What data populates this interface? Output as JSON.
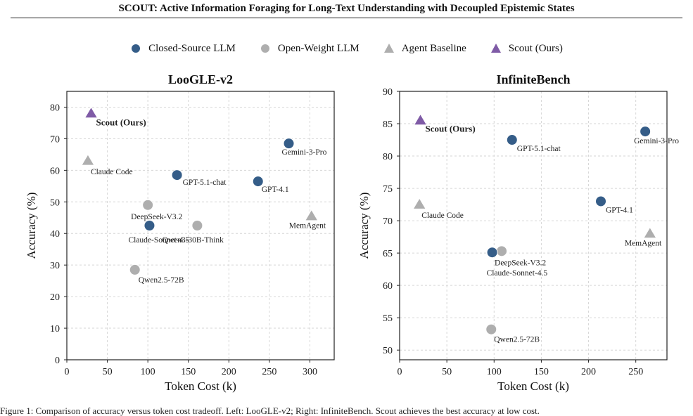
{
  "header": {
    "title": "SCOUT: Active Information Foraging for Long-Text Understanding with Decoupled Epistemic States"
  },
  "legend": [
    {
      "label": "Closed-Source LLM",
      "marker": "circle",
      "color": "#355d88"
    },
    {
      "label": "Open-Weight LLM",
      "marker": "circle",
      "color": "#aeaeae"
    },
    {
      "label": "Agent Baseline",
      "marker": "triangle",
      "color": "#aeaeae"
    },
    {
      "label": "Scout (Ours)",
      "marker": "triangle",
      "color": "#7f5ba6"
    }
  ],
  "colors": {
    "closed": "#355d88",
    "open": "#aeaeae",
    "agent": "#aeaeae",
    "ours": "#7f5ba6",
    "grid": "#d6d6d6"
  },
  "caption": "Figure 1: Comparison of accuracy versus token cost tradeoff. Left: LooGLE-v2; Right: InfiniteBench. Scout achieves the best accuracy at low cost.",
  "chart_data": [
    {
      "type": "scatter",
      "title": "LooGLE-v2",
      "xlabel": "Token Cost (k)",
      "ylabel": "Accuracy (%)",
      "xlim": [
        0,
        330
      ],
      "ylim": [
        0,
        85
      ],
      "xticks": [
        0,
        50,
        100,
        150,
        200,
        250,
        300
      ],
      "yticks": [
        0,
        10,
        20,
        30,
        40,
        50,
        60,
        70,
        80
      ],
      "grid": true,
      "points": [
        {
          "label": "Scout (Ours)",
          "group": "ours",
          "x": 30,
          "y": 78,
          "bold": true
        },
        {
          "label": "Claude Code",
          "group": "agent",
          "x": 26,
          "y": 63
        },
        {
          "label": "GPT-5.1-chat",
          "group": "closed",
          "x": 136,
          "y": 58.5
        },
        {
          "label": "GPT-4.1",
          "group": "closed",
          "x": 236,
          "y": 56.5
        },
        {
          "label": "Gemini-3-Pro",
          "group": "closed",
          "x": 274,
          "y": 68.5
        },
        {
          "label": "DeepSeek-V3.2",
          "group": "open",
          "x": 100,
          "y": 49
        },
        {
          "label": "Claude-Sonnet-4.5",
          "group": "closed",
          "x": 102,
          "y": 42.5
        },
        {
          "label": "Qwen3-30B-Think",
          "group": "open",
          "x": 161,
          "y": 42.5
        },
        {
          "label": "MemAgent",
          "group": "agent",
          "x": 302,
          "y": 45.5
        },
        {
          "label": "Qwen2.5-72B",
          "group": "open",
          "x": 84,
          "y": 28.5
        }
      ]
    },
    {
      "type": "scatter",
      "title": "InfiniteBench",
      "xlabel": "Token Cost (k)",
      "ylabel": "Accuracy (%)",
      "xlim": [
        0,
        283
      ],
      "ylim": [
        48.5,
        90
      ],
      "xticks": [
        0,
        50,
        100,
        150,
        200,
        250
      ],
      "yticks": [
        50,
        55,
        60,
        65,
        70,
        75,
        80,
        85,
        90
      ],
      "grid": true,
      "points": [
        {
          "label": "Scout (Ours)",
          "group": "ours",
          "x": 22,
          "y": 85.5,
          "bold": true
        },
        {
          "label": "GPT-5.1-chat",
          "group": "closed",
          "x": 119,
          "y": 82.5
        },
        {
          "label": "Gemini-3-Pro",
          "group": "closed",
          "x": 260,
          "y": 83.8
        },
        {
          "label": "Claude Code",
          "group": "agent",
          "x": 21,
          "y": 72.5
        },
        {
          "label": "GPT-4.1",
          "group": "closed",
          "x": 213,
          "y": 73
        },
        {
          "label": "MemAgent",
          "group": "agent",
          "x": 265,
          "y": 68
        },
        {
          "label": "DeepSeek-V3.2",
          "group": "open",
          "x": 108,
          "y": 65.3
        },
        {
          "label": "Claude-Sonnet-4.5",
          "group": "closed",
          "x": 98,
          "y": 65.1
        },
        {
          "label": "Qwen2.5-72B",
          "group": "open",
          "x": 97,
          "y": 53.2
        }
      ]
    }
  ]
}
